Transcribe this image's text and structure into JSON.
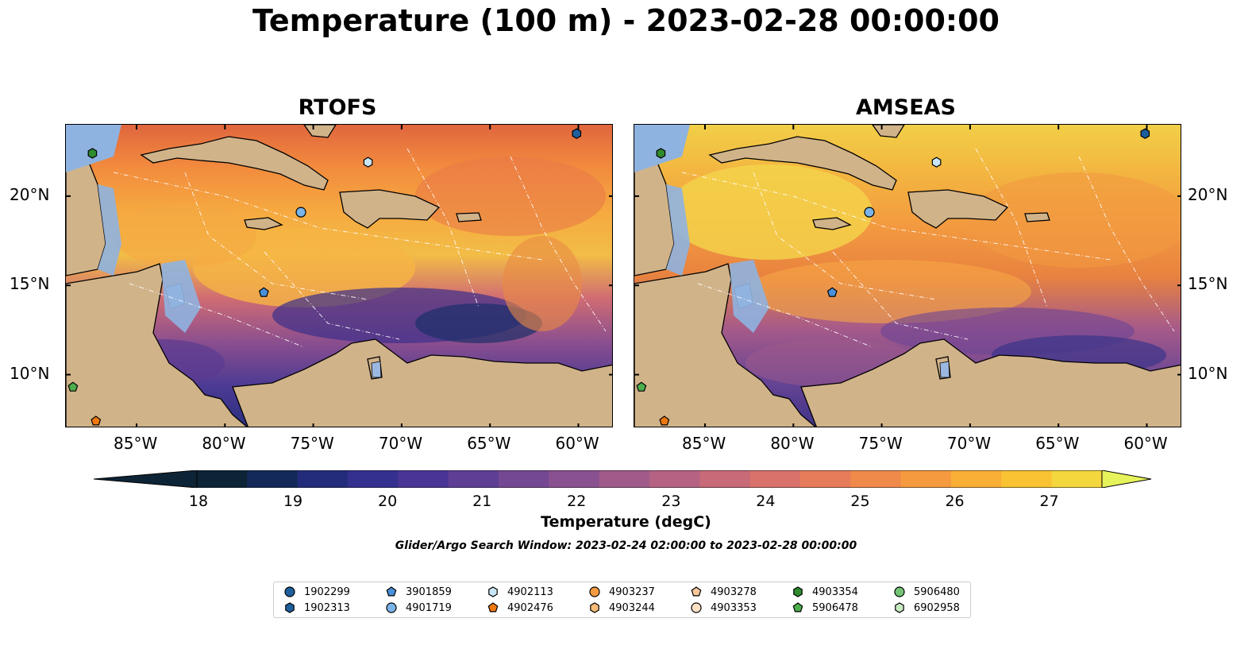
{
  "title": "Temperature (100 m) - 2023-02-28 00:00:00",
  "panels": [
    {
      "title": "RTOFS",
      "palette": "rtofs"
    },
    {
      "title": "AMSEAS",
      "palette": "amseas"
    }
  ],
  "lon_ticks": [
    "85°W",
    "80°W",
    "75°W",
    "70°W",
    "65°W",
    "60°W"
  ],
  "lat_ticks": [
    "20°N",
    "15°N",
    "10°N"
  ],
  "colorbar": {
    "label": "Temperature (degC)",
    "ticks": [
      "18",
      "19",
      "20",
      "21",
      "22",
      "23",
      "24",
      "25",
      "26",
      "27"
    ],
    "colors": [
      "#0d2436",
      "#13295a",
      "#232c7a",
      "#34308f",
      "#4a3596",
      "#5f3f96",
      "#754893",
      "#8a5190",
      "#a05b8b",
      "#b56283",
      "#c86a78",
      "#d9726b",
      "#e67c5a",
      "#f08a4b",
      "#f69a3f",
      "#f9ae36",
      "#f9c334",
      "#f4d63d",
      "#e7f35a"
    ]
  },
  "search_window": "Glider/Argo Search Window: 2023-02-24 02:00:00 to 2023-02-28 00:00:00",
  "legend": [
    {
      "id": "1902299",
      "marker": "circle",
      "color": "#1f5f9e"
    },
    {
      "id": "1902313",
      "marker": "hexagon",
      "color": "#1f5f9e"
    },
    {
      "id": "3901859",
      "marker": "pentagon",
      "color": "#4a90d9"
    },
    {
      "id": "4901719",
      "marker": "circle",
      "color": "#7ab4e8"
    },
    {
      "id": "4902113",
      "marker": "hexagon",
      "color": "#c8e6f8"
    },
    {
      "id": "4902476",
      "marker": "pentagon",
      "color": "#f07810"
    },
    {
      "id": "4903237",
      "marker": "circle",
      "color": "#f59a40"
    },
    {
      "id": "4903244",
      "marker": "hexagon",
      "color": "#f9bc78"
    },
    {
      "id": "4903278",
      "marker": "pentagon",
      "color": "#f8c89a"
    },
    {
      "id": "4903353",
      "marker": "circle",
      "color": "#fde0c4"
    },
    {
      "id": "4903354",
      "marker": "hexagon",
      "color": "#2e8b2e"
    },
    {
      "id": "5906478",
      "marker": "pentagon",
      "color": "#4cae4c"
    },
    {
      "id": "5906480",
      "marker": "circle",
      "color": "#74c476"
    },
    {
      "id": "6902958",
      "marker": "hexagon",
      "color": "#c7eac0"
    }
  ],
  "floats": [
    {
      "lon": -87.5,
      "lat": 22.4,
      "marker": "hexagon",
      "color": "#2e8b2e"
    },
    {
      "lon": -71.9,
      "lat": 21.9,
      "marker": "hexagon",
      "color": "#c8e6f8"
    },
    {
      "lon": -60.1,
      "lat": 23.5,
      "marker": "hexagon",
      "color": "#1f5f9e"
    },
    {
      "lon": -75.7,
      "lat": 19.1,
      "marker": "circle",
      "color": "#7ab4e8"
    },
    {
      "lon": -77.8,
      "lat": 14.6,
      "marker": "pentagon",
      "color": "#4a90d9"
    },
    {
      "lon": -88.6,
      "lat": 9.3,
      "marker": "pentagon",
      "color": "#4cae4c"
    },
    {
      "lon": -87.3,
      "lat": 7.4,
      "marker": "pentagon",
      "color": "#f07810"
    }
  ]
}
